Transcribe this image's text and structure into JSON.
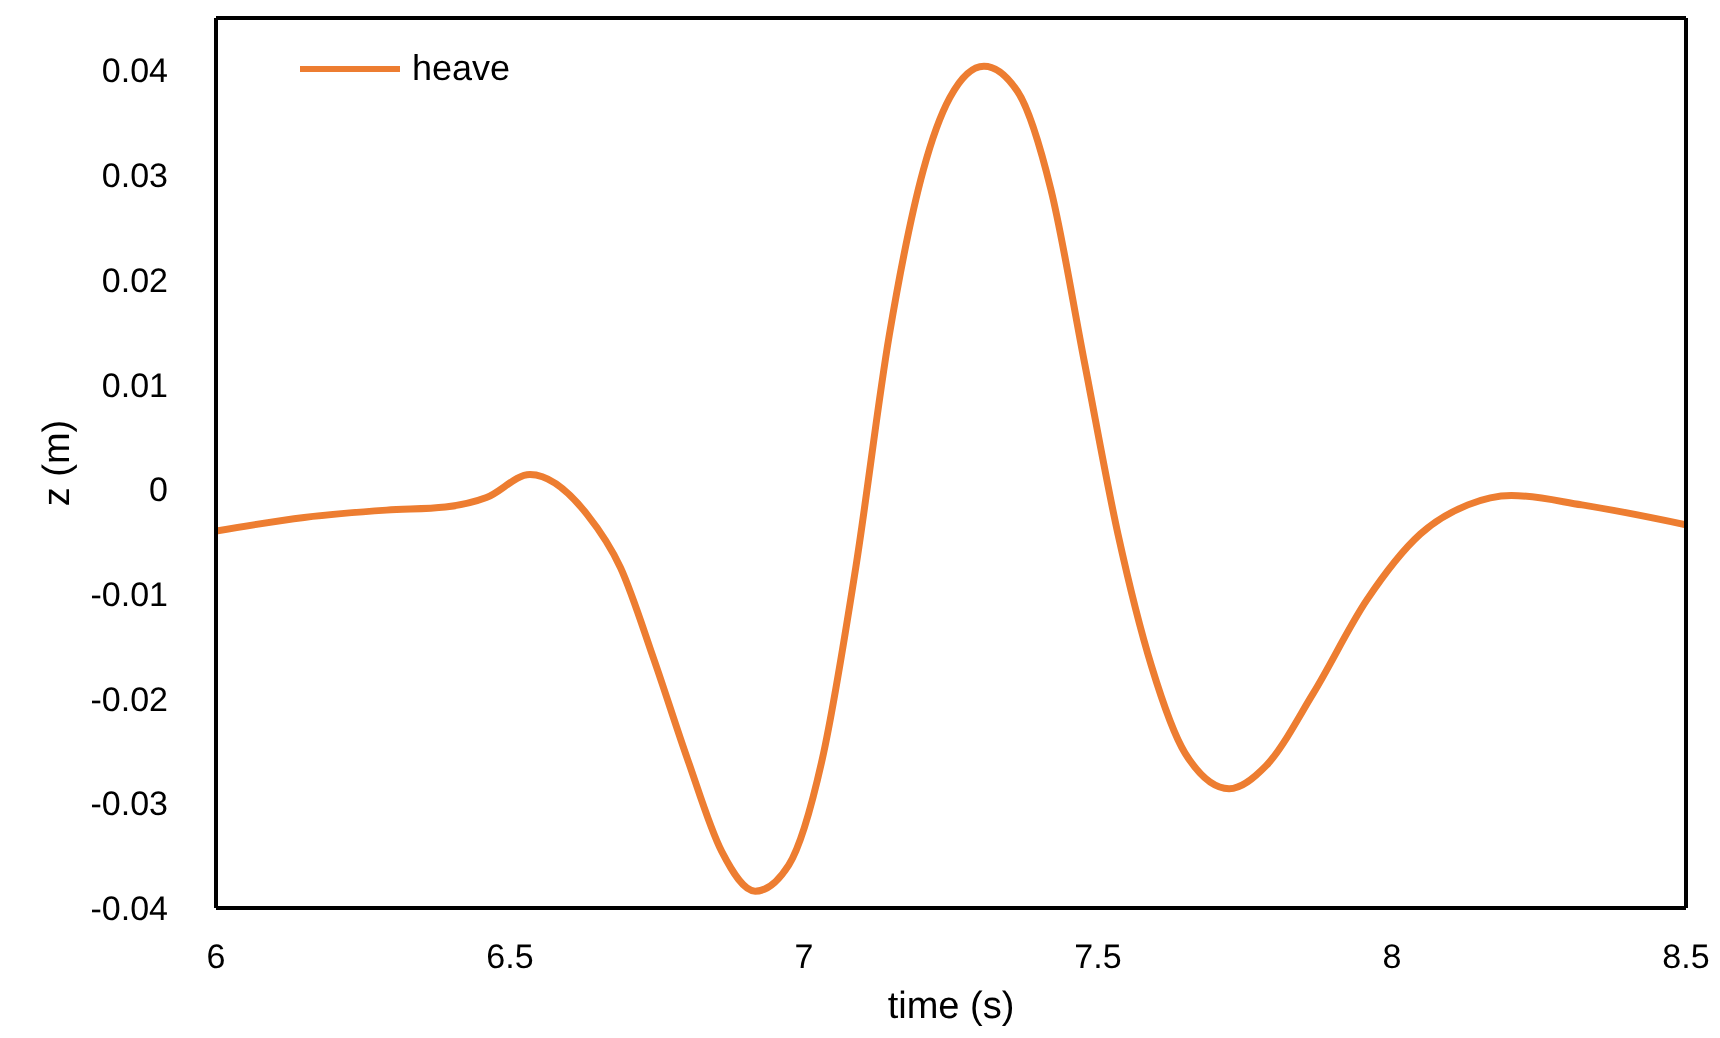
{
  "chart_data": {
    "type": "line",
    "xlabel": "time (s)",
    "ylabel": "z (m)",
    "x": [
      6,
      6.15,
      6.29,
      6.39,
      6.46,
      6.534,
      6.631,
      6.688,
      6.745,
      6.802,
      6.86,
      6.917,
      6.974,
      7.031,
      7.088,
      7.145,
      7.203,
      7.248,
      7.306,
      7.363,
      7.42,
      7.477,
      7.534,
      7.591,
      7.648,
      7.723,
      7.786,
      7.866,
      7.957,
      8.048,
      8.129,
      8.203,
      8.323,
      8.5
    ],
    "series": [
      {
        "name": "heave",
        "color": "#ed7d31",
        "values": [
          -0.004,
          -0.0027,
          -0.002,
          -0.0017,
          -0.0008,
          0.0014,
          -0.0024,
          -0.0075,
          -0.0163,
          -0.0258,
          -0.0346,
          -0.0384,
          -0.0359,
          -0.0258,
          -0.0075,
          0.0147,
          0.0305,
          0.0374,
          0.0404,
          0.038,
          0.0286,
          0.0121,
          -0.0043,
          -0.0169,
          -0.0252,
          -0.0286,
          -0.0264,
          -0.0195,
          -0.0106,
          -0.0043,
          -0.0015,
          -0.0006,
          -0.0015,
          -0.0034
        ]
      }
    ],
    "xlim": [
      6,
      8.5
    ],
    "xticks": [
      6,
      6.5,
      7,
      7.5,
      8,
      8.5
    ],
    "ylim": [
      -0.04,
      0.045
    ],
    "yticks": [
      -0.04,
      -0.03,
      -0.02,
      -0.01,
      0,
      0.01,
      0.02,
      0.03,
      0.04
    ],
    "legend": "top left",
    "grid": false,
    "marker": "none",
    "line_style": "solid"
  }
}
